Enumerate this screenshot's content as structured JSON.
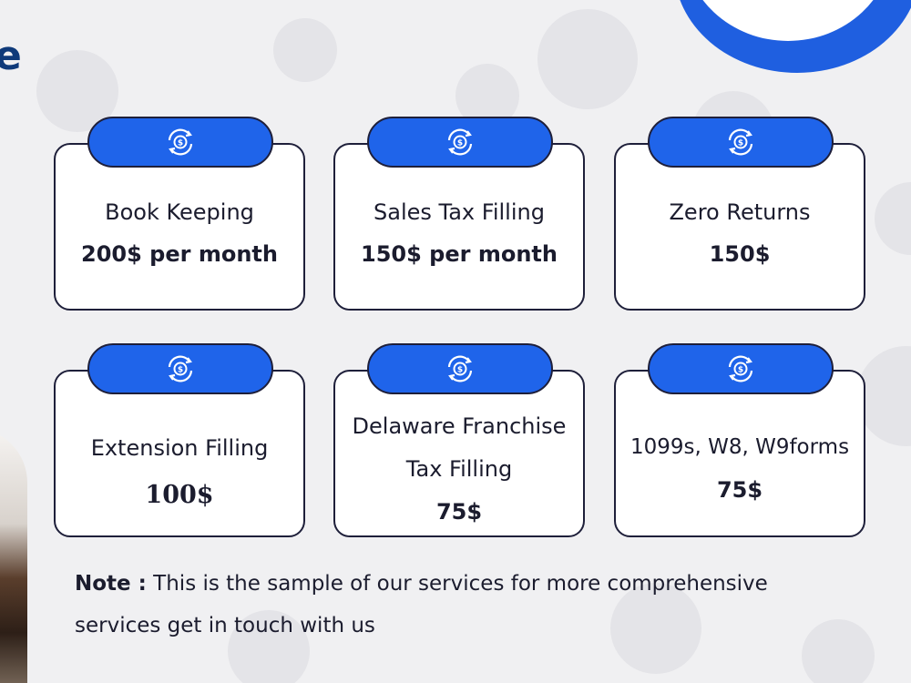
{
  "heading_fragment": "e",
  "services": [
    {
      "name": "Book Keeping",
      "price": "200$ per month",
      "icon": "dollar-cycle-icon"
    },
    {
      "name": "Sales Tax Filling",
      "price": "150$ per month",
      "icon": "dollar-cycle-icon"
    },
    {
      "name": "Zero Returns",
      "price": "150$",
      "icon": "dollar-cycle-icon"
    },
    {
      "name": "Extension Filling",
      "price": "100$",
      "icon": "dollar-cycle-icon"
    },
    {
      "name_line1": "Delaware Franchise",
      "name_line2": "Tax Filling",
      "price": "75$",
      "icon": "dollar-cycle-icon"
    },
    {
      "name": "1099s, W8, W9forms",
      "price": "75$",
      "icon": "dollar-cycle-icon"
    }
  ],
  "note": {
    "label": "Note :",
    "text_line1": "This is the sample of our services for more comprehensive",
    "text_line2": "services get in touch with us"
  },
  "colors": {
    "accent_blue": "#1f64ea",
    "heading_navy": "#0f3a7a",
    "outline": "#1e1f3a",
    "background": "#f0f0f2"
  }
}
